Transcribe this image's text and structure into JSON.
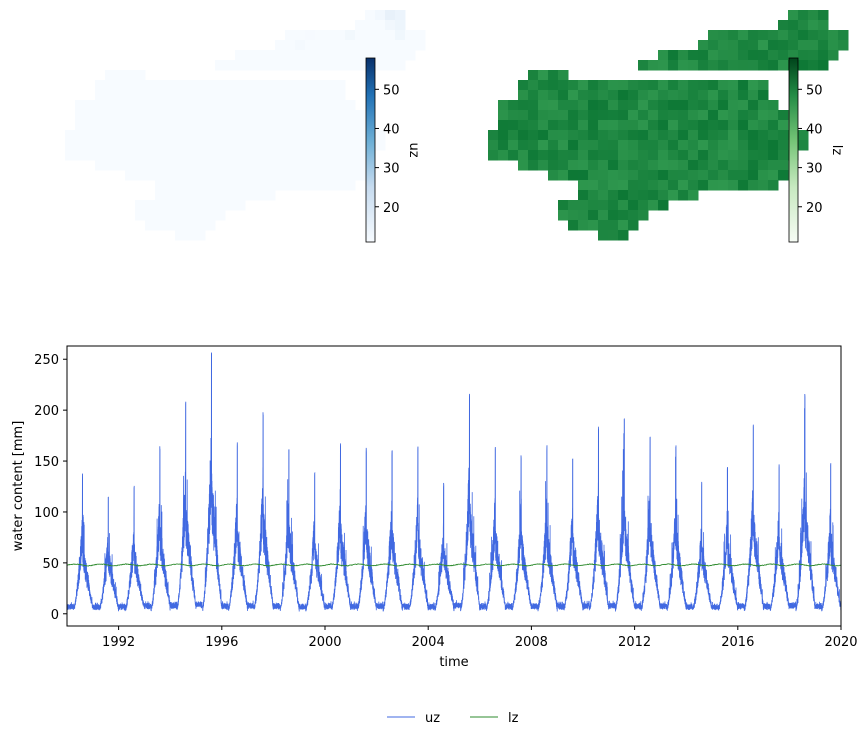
{
  "chart_data": [
    {
      "type": "heatmap",
      "colorbar_label": "uz",
      "colormap": "Blues",
      "colorbar_range": [
        11,
        58
      ],
      "colorbar_ticks": [
        "20",
        "30",
        "40",
        "50"
      ]
    },
    {
      "type": "heatmap",
      "colorbar_label": "lz",
      "colormap": "Greens",
      "colorbar_range": [
        11,
        58
      ],
      "colorbar_ticks": [
        "20",
        "30",
        "40",
        "50"
      ]
    },
    {
      "type": "line",
      "xlabel": "time",
      "ylabel": "water content [mm]",
      "xlim": [
        1990,
        2020
      ],
      "ylim": [
        -12,
        263
      ],
      "x_ticks": [
        "1992",
        "1996",
        "2000",
        "2004",
        "2008",
        "2012",
        "2016",
        "2020"
      ],
      "y_ticks": [
        "0",
        "50",
        "100",
        "150",
        "200",
        "250"
      ],
      "legend_position": "bottom-center",
      "series": [
        {
          "name": "uz",
          "color": "#4169e1",
          "annual_peaks": [
            [
              1990.6,
              133
            ],
            [
              1991.6,
              112
            ],
            [
              1992.6,
              120
            ],
            [
              1993.6,
              160
            ],
            [
              1994.6,
              204
            ],
            [
              1995.6,
              251
            ],
            [
              1996.6,
              164
            ],
            [
              1997.6,
              192
            ],
            [
              1998.6,
              160
            ],
            [
              1999.6,
              133
            ],
            [
              2000.6,
              164
            ],
            [
              2001.6,
              158
            ],
            [
              2002.6,
              155
            ],
            [
              2003.6,
              160
            ],
            [
              2004.6,
              125
            ],
            [
              2005.6,
              211
            ],
            [
              2006.6,
              160
            ],
            [
              2007.6,
              150
            ],
            [
              2008.6,
              160
            ],
            [
              2009.6,
              148
            ],
            [
              2010.6,
              180
            ],
            [
              2011.6,
              190
            ],
            [
              2012.6,
              170
            ],
            [
              2013.6,
              160
            ],
            [
              2014.6,
              124
            ],
            [
              2015.6,
              140
            ],
            [
              2016.6,
              183
            ],
            [
              2017.6,
              142
            ],
            [
              2018.6,
              212
            ],
            [
              2019.6,
              144
            ]
          ],
          "annual_minimum": 2
        },
        {
          "name": "lz",
          "color": "#2e8b2e",
          "mean_value": 48
        }
      ]
    }
  ]
}
